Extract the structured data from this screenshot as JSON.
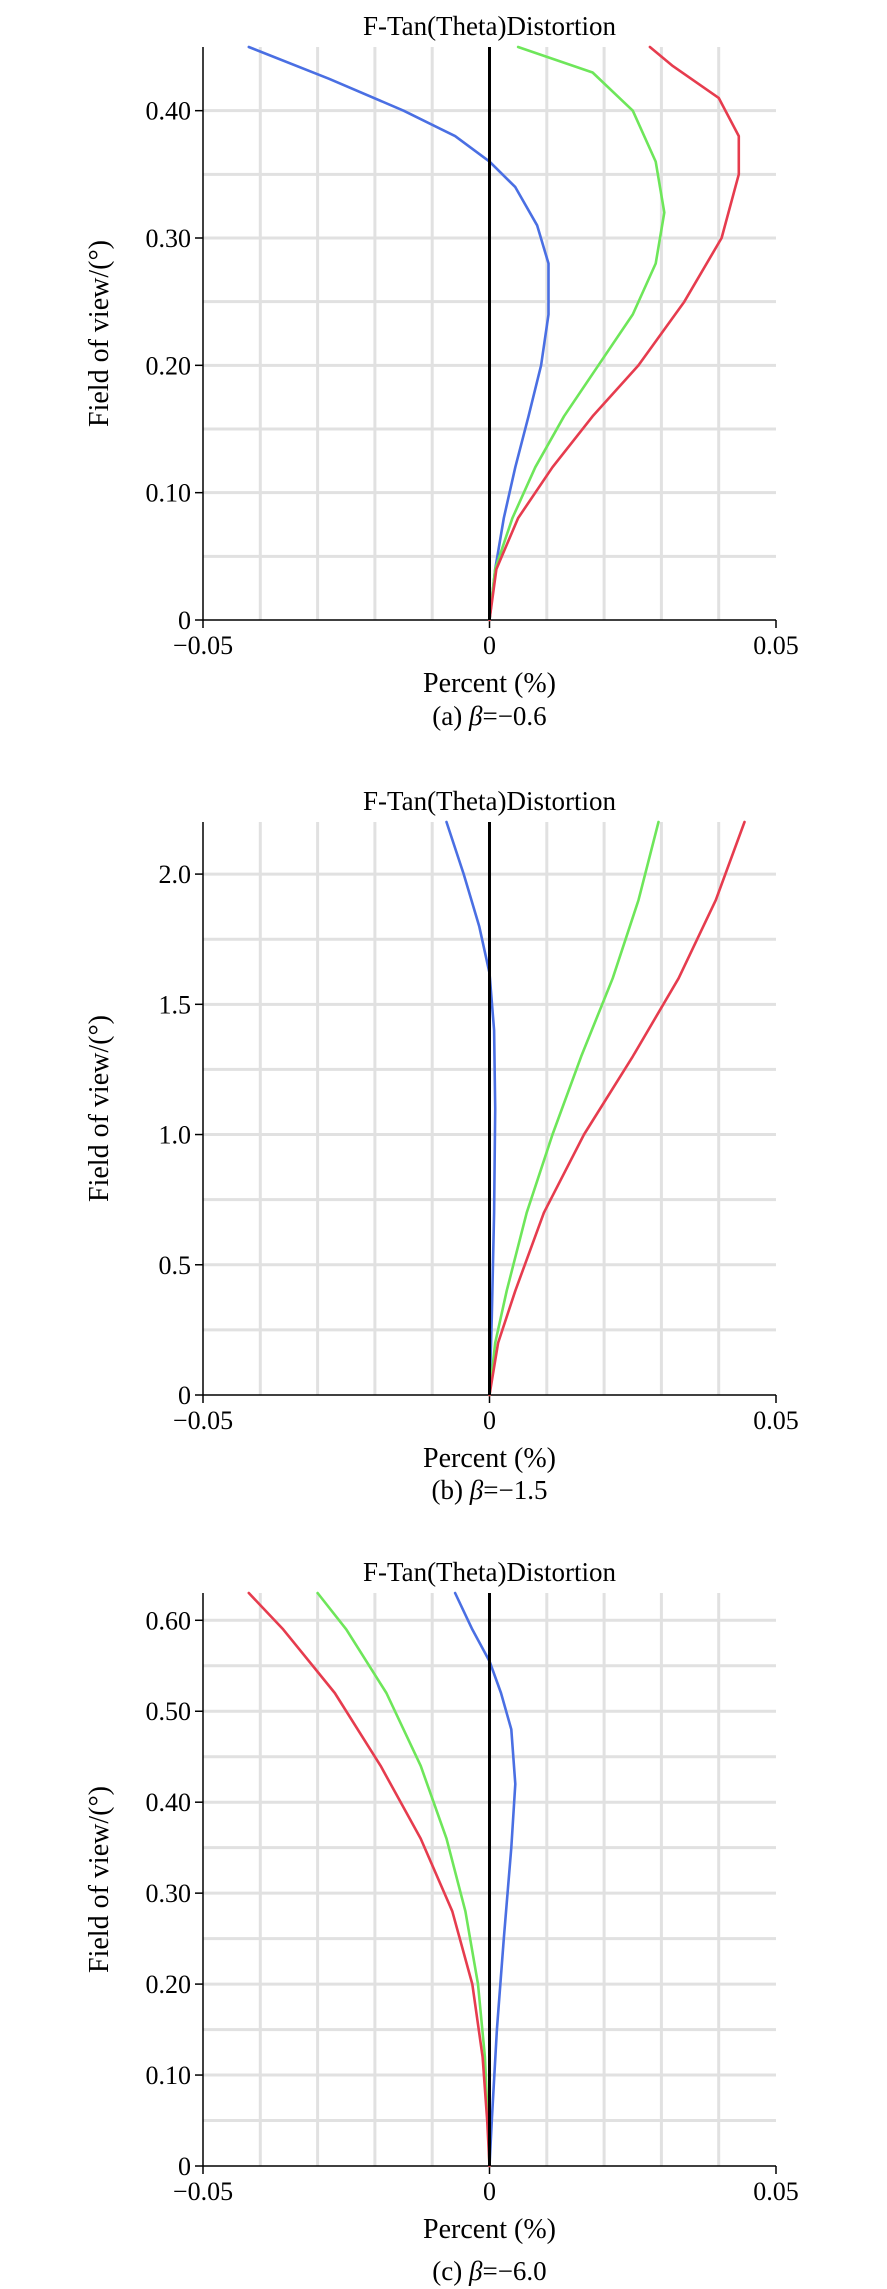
{
  "chart_data": [
    {
      "type": "line",
      "title": "F-Tan(Theta)Distortion",
      "xlabel": "Percent (%)",
      "ylabel": "Field of view/(°)",
      "caption_prefix": "(a) ",
      "caption_symbol": "β",
      "caption_suffix": "=−0.6",
      "xlim": [
        -0.05,
        0.05
      ],
      "ylim": [
        0,
        0.45
      ],
      "xticks": [
        -0.05,
        0,
        0.05
      ],
      "xtick_labels": [
        "−0.05",
        "0",
        "0.05"
      ],
      "yticks": [
        0,
        0.1,
        0.2,
        0.3,
        0.4
      ],
      "ytick_labels": [
        "0",
        "0.10",
        "0.20",
        "0.30",
        "0.40"
      ],
      "x_grid": [
        -0.04,
        -0.03,
        -0.02,
        -0.01,
        0.01,
        0.02,
        0.03,
        0.04
      ],
      "y_grid": [
        0.05,
        0.1,
        0.15,
        0.2,
        0.25,
        0.3,
        0.35,
        0.4
      ],
      "grid": true,
      "legend": "none",
      "series": [
        {
          "color": "#4a6fe3",
          "points": [
            [
              0,
              0
            ],
            [
              0.001,
              0.04
            ],
            [
              0.0025,
              0.08
            ],
            [
              0.0045,
              0.12
            ],
            [
              0.0068,
              0.16
            ],
            [
              0.009,
              0.2
            ],
            [
              0.0103,
              0.24
            ],
            [
              0.0103,
              0.28
            ],
            [
              0.0083,
              0.31
            ],
            [
              0.0045,
              0.34
            ],
            [
              0,
              0.36
            ],
            [
              -0.006,
              0.38
            ],
            [
              -0.015,
              0.4
            ],
            [
              -0.028,
              0.425
            ],
            [
              -0.042,
              0.45
            ]
          ]
        },
        {
          "color": "#6ee65a",
          "points": [
            [
              0,
              0
            ],
            [
              0.001,
              0.04
            ],
            [
              0.004,
              0.08
            ],
            [
              0.008,
              0.12
            ],
            [
              0.013,
              0.16
            ],
            [
              0.019,
              0.2
            ],
            [
              0.025,
              0.24
            ],
            [
              0.029,
              0.28
            ],
            [
              0.0305,
              0.32
            ],
            [
              0.029,
              0.36
            ],
            [
              0.025,
              0.4
            ],
            [
              0.018,
              0.43
            ],
            [
              0.005,
              0.45
            ]
          ]
        },
        {
          "color": "#e63c4e",
          "points": [
            [
              0,
              0
            ],
            [
              0.0012,
              0.04
            ],
            [
              0.005,
              0.08
            ],
            [
              0.011,
              0.12
            ],
            [
              0.018,
              0.16
            ],
            [
              0.026,
              0.2
            ],
            [
              0.034,
              0.25
            ],
            [
              0.0405,
              0.3
            ],
            [
              0.0435,
              0.35
            ],
            [
              0.0435,
              0.38
            ],
            [
              0.04,
              0.41
            ],
            [
              0.032,
              0.435
            ],
            [
              0.028,
              0.45
            ]
          ]
        }
      ]
    },
    {
      "type": "line",
      "title": "F-Tan(Theta)Distortion",
      "xlabel": "Percent (%)",
      "ylabel": "Field of view/(°)",
      "caption_prefix": "(b) ",
      "caption_symbol": "β",
      "caption_suffix": "=−1.5",
      "xlim": [
        -0.05,
        0.05
      ],
      "ylim": [
        0,
        2.2
      ],
      "xticks": [
        -0.05,
        0,
        0.05
      ],
      "xtick_labels": [
        "−0.05",
        "0",
        "0.05"
      ],
      "yticks": [
        0,
        0.5,
        1,
        1.5,
        2
      ],
      "ytick_labels": [
        "0",
        "0.5",
        "1.0",
        "1.5",
        "2.0"
      ],
      "x_grid": [
        -0.04,
        -0.03,
        -0.02,
        -0.01,
        0.01,
        0.02,
        0.03,
        0.04
      ],
      "y_grid": [
        0.25,
        0.5,
        0.75,
        1,
        1.25,
        1.5,
        1.75,
        2
      ],
      "grid": true,
      "legend": "none",
      "series": [
        {
          "color": "#4a6fe3",
          "points": [
            [
              0,
              0
            ],
            [
              0.0004,
              0.3
            ],
            [
              0.0008,
              0.7
            ],
            [
              0.001,
              1.1
            ],
            [
              0.0008,
              1.4
            ],
            [
              0,
              1.62
            ],
            [
              -0.0018,
              1.8
            ],
            [
              -0.0045,
              2.0
            ],
            [
              -0.0075,
              2.2
            ]
          ]
        },
        {
          "color": "#6ee65a",
          "points": [
            [
              0,
              0
            ],
            [
              0.001,
              0.2
            ],
            [
              0.003,
              0.4
            ],
            [
              0.0065,
              0.7
            ],
            [
              0.011,
              1.0
            ],
            [
              0.016,
              1.3
            ],
            [
              0.0215,
              1.6
            ],
            [
              0.026,
              1.9
            ],
            [
              0.0295,
              2.2
            ]
          ]
        },
        {
          "color": "#e63c4e",
          "points": [
            [
              0,
              0
            ],
            [
              0.0015,
              0.2
            ],
            [
              0.0045,
              0.4
            ],
            [
              0.0095,
              0.7
            ],
            [
              0.0165,
              1.0
            ],
            [
              0.025,
              1.3
            ],
            [
              0.033,
              1.6
            ],
            [
              0.0395,
              1.9
            ],
            [
              0.0445,
              2.2
            ]
          ]
        }
      ]
    },
    {
      "type": "line",
      "title": "F-Tan(Theta)Distortion",
      "xlabel": "Percent (%)",
      "ylabel": "Field of view/(°)",
      "caption_prefix": "(c) ",
      "caption_symbol": "β",
      "caption_suffix": "=−6.0",
      "xlim": [
        -0.05,
        0.05
      ],
      "ylim": [
        0,
        0.63
      ],
      "xticks": [
        -0.05,
        0,
        0.05
      ],
      "xtick_labels": [
        "−0.05",
        "0",
        "0.05"
      ],
      "yticks": [
        0,
        0.1,
        0.2,
        0.3,
        0.4,
        0.5,
        0.6
      ],
      "ytick_labels": [
        "0",
        "0.10",
        "0.20",
        "0.30",
        "0.40",
        "0.50",
        "0.60"
      ],
      "x_grid": [
        -0.04,
        -0.03,
        -0.02,
        -0.01,
        0.01,
        0.02,
        0.03,
        0.04
      ],
      "y_grid": [
        0.05,
        0.1,
        0.15,
        0.2,
        0.25,
        0.3,
        0.35,
        0.4,
        0.45,
        0.5,
        0.55,
        0.6
      ],
      "grid": true,
      "legend": "none",
      "series": [
        {
          "color": "#4a6fe3",
          "points": [
            [
              0,
              0
            ],
            [
              0.0004,
              0.05
            ],
            [
              0.0013,
              0.15
            ],
            [
              0.0025,
              0.25
            ],
            [
              0.0038,
              0.35
            ],
            [
              0.0045,
              0.42
            ],
            [
              0.0038,
              0.48
            ],
            [
              0.002,
              0.52
            ],
            [
              0,
              0.555
            ],
            [
              -0.003,
              0.59
            ],
            [
              -0.006,
              0.63
            ]
          ]
        },
        {
          "color": "#6ee65a",
          "points": [
            [
              0,
              0
            ],
            [
              -0.0003,
              0.05
            ],
            [
              -0.0008,
              0.12
            ],
            [
              -0.002,
              0.2
            ],
            [
              -0.0042,
              0.28
            ],
            [
              -0.0075,
              0.36
            ],
            [
              -0.012,
              0.44
            ],
            [
              -0.018,
              0.52
            ],
            [
              -0.025,
              0.59
            ],
            [
              -0.03,
              0.63
            ]
          ]
        },
        {
          "color": "#e63c4e",
          "points": [
            [
              0,
              0
            ],
            [
              -0.0004,
              0.05
            ],
            [
              -0.0012,
              0.12
            ],
            [
              -0.003,
              0.2
            ],
            [
              -0.0065,
              0.28
            ],
            [
              -0.012,
              0.36
            ],
            [
              -0.019,
              0.44
            ],
            [
              -0.027,
              0.52
            ],
            [
              -0.036,
              0.59
            ],
            [
              -0.042,
              0.63
            ]
          ]
        }
      ]
    }
  ]
}
